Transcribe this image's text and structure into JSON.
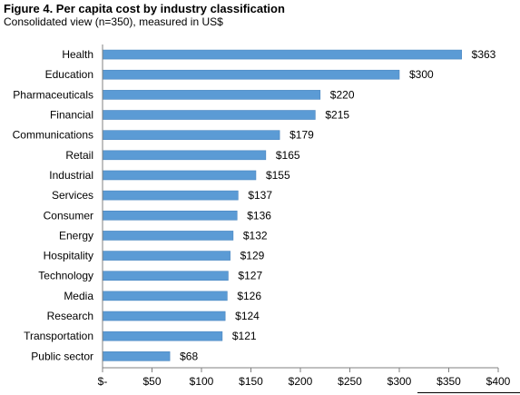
{
  "figure": {
    "title": "Figure 4. Per capita cost by industry classification",
    "subtitle": "Consolidated view (n=350), measured in US$"
  },
  "colors": {
    "bar": "#5b9bd5",
    "bar_edge": "#4a86c0",
    "axis": "#808080",
    "text": "#000000"
  },
  "chart_data": {
    "type": "bar",
    "orientation": "horizontal",
    "categories": [
      "Health",
      "Education",
      "Pharmaceuticals",
      "Financial",
      "Communications",
      "Retail",
      "Industrial",
      "Services",
      "Consumer",
      "Energy",
      "Hospitality",
      "Technology",
      "Media",
      "Research",
      "Transportation",
      "Public sector"
    ],
    "values": [
      363,
      300,
      220,
      215,
      179,
      165,
      155,
      137,
      136,
      132,
      129,
      127,
      126,
      124,
      121,
      68
    ],
    "value_labels": [
      "$363",
      "$300",
      "$220",
      "$215",
      "$179",
      "$165",
      "$155",
      "$137",
      "$136",
      "$132",
      "$129",
      "$127",
      "$126",
      "$124",
      "$121",
      "$68"
    ],
    "xlim": [
      0,
      400
    ],
    "xticks": [
      0,
      50,
      100,
      150,
      200,
      250,
      300,
      350,
      400
    ],
    "xtick_labels": [
      "$-",
      "$50",
      "$100",
      "$150",
      "$200",
      "$250",
      "$300",
      "$350",
      "$400"
    ],
    "grid": false,
    "legend": "none"
  }
}
